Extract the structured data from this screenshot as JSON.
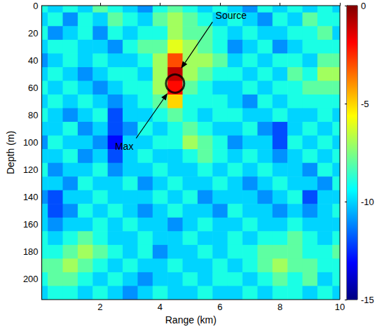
{
  "chart_data": {
    "type": "heatmap",
    "xlabel": "Range (km)",
    "ylabel": "Depth (m)",
    "xlim": [
      0.05,
      10
    ],
    "xticks": [
      2,
      4,
      6,
      8,
      10
    ],
    "ylim": [
      0,
      215
    ],
    "yticks": [
      0,
      20,
      40,
      60,
      80,
      100,
      120,
      140,
      160,
      180,
      200
    ],
    "heatmap": {
      "x": [
        0,
        0.5,
        1,
        1.5,
        2,
        2.5,
        3,
        3.5,
        4,
        4.5,
        5,
        5.5,
        6,
        6.5,
        7,
        7.5,
        8,
        8.5,
        9,
        9.5,
        10
      ],
      "y": [
        0,
        10,
        20,
        30,
        40,
        50,
        60,
        70,
        80,
        90,
        100,
        110,
        120,
        130,
        140,
        150,
        160,
        170,
        180,
        190,
        200,
        210
      ],
      "values": [
        [
          -9,
          -10,
          -9,
          -10,
          -8,
          -9,
          -10,
          -11,
          -9,
          -8,
          -9,
          -10,
          -9,
          -10,
          -11,
          -9,
          -10,
          -9,
          -10,
          -9,
          -10
        ],
        [
          -10,
          -9,
          -11,
          -9,
          -10,
          -8,
          -9,
          -10,
          -8,
          -7,
          -8,
          -9,
          -10,
          -9,
          -10,
          -11,
          -9,
          -10,
          -8,
          -9,
          -9
        ],
        [
          -9,
          -11,
          -10,
          -9,
          -11,
          -9,
          -10,
          -9,
          -9,
          -7,
          -8,
          -8,
          -9,
          -10,
          -9,
          -10,
          -10,
          -9,
          -9,
          -8,
          -10
        ],
        [
          -10,
          -9,
          -9,
          -10,
          -10,
          -11,
          -9,
          -8,
          -8,
          -6,
          -7,
          -8,
          -9,
          -11,
          -10,
          -9,
          -11,
          -10,
          -9,
          -9,
          -9
        ],
        [
          -11,
          -10,
          -9,
          -10,
          -9,
          -10,
          -10,
          -9,
          -7,
          -3,
          -7,
          -7,
          -8,
          -10,
          -9,
          -10,
          -9,
          -9,
          -10,
          -8,
          -8
        ],
        [
          -10,
          -9,
          -10,
          -11,
          -10,
          -9,
          -9,
          -10,
          -7,
          -1,
          -7,
          -8,
          -9,
          -9,
          -10,
          -9,
          -10,
          -8,
          -9,
          -7,
          -7
        ],
        [
          -9,
          -10,
          -9,
          -10,
          -11,
          -10,
          -9,
          -9,
          -7,
          -2,
          -8,
          -9,
          -10,
          -10,
          -9,
          -10,
          -9,
          -9,
          -8,
          -8,
          -8
        ],
        [
          -10,
          -9,
          -10,
          -9,
          -10,
          -11,
          -10,
          -9,
          -8,
          -5,
          -9,
          -9,
          -9,
          -10,
          -11,
          -9,
          -10,
          -9,
          -9,
          -9,
          -9
        ],
        [
          -9,
          -10,
          -11,
          -10,
          -9,
          -12,
          -10,
          -10,
          -9,
          -8,
          -9,
          -10,
          -9,
          -9,
          -10,
          -10,
          -9,
          -10,
          -10,
          -9,
          -10
        ],
        [
          -10,
          -10,
          -9,
          -11,
          -10,
          -12,
          -11,
          -9,
          -10,
          -9,
          -8,
          -9,
          -10,
          -10,
          -9,
          -11,
          -12,
          -10,
          -9,
          -10,
          -9
        ],
        [
          -11,
          -9,
          -10,
          -10,
          -11,
          -13,
          -10,
          -10,
          -9,
          -9,
          -7,
          -8,
          -9,
          -11,
          -10,
          -10,
          -12,
          -9,
          -10,
          -9,
          -10
        ],
        [
          -10,
          -10,
          -9,
          -11,
          -10,
          -12,
          -10,
          -9,
          -10,
          -10,
          -9,
          -8,
          -9,
          -10,
          -9,
          -10,
          -11,
          -10,
          -9,
          -10,
          -9
        ],
        [
          -9,
          -11,
          -10,
          -10,
          -9,
          -11,
          -10,
          -10,
          -9,
          -10,
          -10,
          -9,
          -10,
          -9,
          -10,
          -9,
          -10,
          -10,
          -11,
          -9,
          -10
        ],
        [
          -10,
          -10,
          -11,
          -9,
          -10,
          -10,
          -9,
          -11,
          -10,
          -9,
          -10,
          -10,
          -9,
          -10,
          -11,
          -10,
          -9,
          -10,
          -10,
          -11,
          -9
        ],
        [
          -11,
          -12,
          -10,
          -10,
          -9,
          -10,
          -10,
          -10,
          -9,
          -10,
          -9,
          -11,
          -10,
          -10,
          -10,
          -11,
          -10,
          -9,
          -12,
          -10,
          -10
        ],
        [
          -10,
          -12,
          -11,
          -9,
          -10,
          -9,
          -10,
          -11,
          -10,
          -9,
          -10,
          -10,
          -11,
          -9,
          -10,
          -10,
          -11,
          -10,
          -11,
          -10,
          -9
        ],
        [
          -10,
          -11,
          -10,
          -10,
          -9,
          -10,
          -9,
          -10,
          -10,
          -11,
          -10,
          -9,
          -10,
          -10,
          -9,
          -10,
          -10,
          -9,
          -10,
          -10,
          -10
        ],
        [
          -9,
          -10,
          -9,
          -8,
          -9,
          -10,
          -10,
          -9,
          -10,
          -10,
          -9,
          -10,
          -10,
          -9,
          -10,
          -9,
          -9,
          -8,
          -9,
          -10,
          -9
        ],
        [
          -9,
          -9,
          -8,
          -7,
          -8,
          -9,
          -10,
          -9,
          -11,
          -10,
          -10,
          -9,
          -10,
          -9,
          -9,
          -8,
          -8,
          -8,
          -9,
          -9,
          -8
        ],
        [
          -8,
          -8,
          -7,
          -8,
          -9,
          -10,
          -9,
          -10,
          -10,
          -9,
          -10,
          -10,
          -9,
          -10,
          -9,
          -8,
          -7,
          -8,
          -8,
          -9,
          -9
        ],
        [
          -9,
          -8,
          -8,
          -9,
          -10,
          -9,
          -10,
          -11,
          -10,
          -10,
          -9,
          -10,
          -9,
          -9,
          -10,
          -9,
          -8,
          -9,
          -8,
          -10,
          -9
        ],
        [
          -10,
          -9,
          -9,
          -10,
          -9,
          -10,
          -11,
          -10,
          -9,
          -10,
          -10,
          -9,
          -10,
          -10,
          -9,
          -10,
          -9,
          -9,
          -10,
          -9,
          -10
        ]
      ]
    },
    "colorbar": {
      "range": [
        -15,
        0
      ],
      "ticks": [
        0,
        -5,
        -10,
        -15
      ]
    },
    "markers": [
      {
        "x": 4.5,
        "y": 57,
        "marker": "circle"
      }
    ],
    "annotations": [
      {
        "text": "Source",
        "x": 5.85,
        "y": 7,
        "arrow_from": [
          5.75,
          12
        ],
        "arrow_to": [
          4.7,
          46
        ]
      },
      {
        "text": "Max",
        "x": 2.8,
        "y": 103,
        "arrow_from": [
          3.2,
          97
        ],
        "arrow_to": [
          4.25,
          64
        ]
      }
    ]
  }
}
